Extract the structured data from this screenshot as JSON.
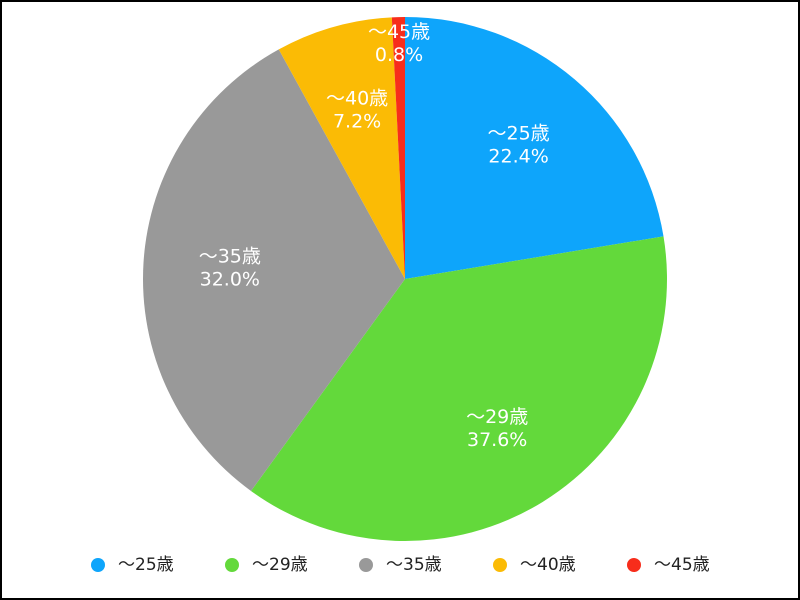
{
  "chart_data": {
    "type": "pie",
    "categories": [
      "～25歳",
      "～29歳",
      "～35歳",
      "～40歳",
      "～45歳"
    ],
    "values": [
      22.4,
      37.6,
      32.0,
      7.2,
      0.8
    ],
    "value_labels": [
      "22.4%",
      "37.6%",
      "32.0%",
      "7.2%",
      "0.8%"
    ],
    "colors": [
      "#0ea5fb",
      "#63d93b",
      "#999999",
      "#fbbb05",
      "#f72d1b"
    ],
    "legend": "bottom"
  }
}
